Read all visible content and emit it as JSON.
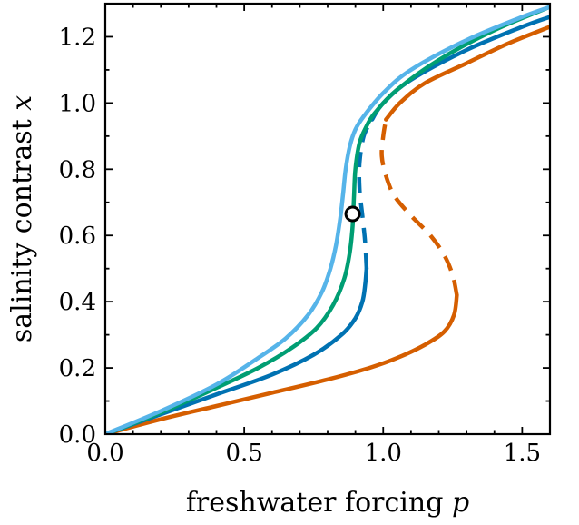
{
  "chart_data": {
    "type": "line",
    "xlabel": "freshwater forcing ",
    "xlabel_var": "p",
    "ylabel": "salinity contrast ",
    "ylabel_var": "x",
    "xlim": [
      0.0,
      1.6
    ],
    "ylim": [
      0.0,
      1.3
    ],
    "xticks": [
      "0.0",
      "0.5",
      "1.0",
      "1.5"
    ],
    "yticks": [
      "0.0",
      "0.2",
      "0.4",
      "0.6",
      "0.8",
      "1.0",
      "1.2"
    ],
    "grid": false,
    "legend": "none",
    "series": [
      {
        "color": "#56b4e9",
        "stable": [
          [
            0,
            0
          ],
          [
            0.2,
            0.07
          ],
          [
            0.4,
            0.15
          ],
          [
            0.55,
            0.23
          ],
          [
            0.65,
            0.29
          ],
          [
            0.73,
            0.36
          ],
          [
            0.78,
            0.43
          ],
          [
            0.81,
            0.5
          ],
          [
            0.83,
            0.57
          ],
          [
            0.845,
            0.65
          ],
          [
            0.855,
            0.72
          ],
          [
            0.865,
            0.8
          ],
          [
            0.88,
            0.87
          ],
          [
            0.9,
            0.92
          ],
          [
            0.93,
            0.96
          ],
          [
            1.0,
            1.03
          ],
          [
            1.1,
            1.1
          ],
          [
            1.3,
            1.19
          ],
          [
            1.5,
            1.26
          ],
          [
            1.6,
            1.29
          ]
        ],
        "unstable": []
      },
      {
        "color": "#009e73",
        "stable": [
          [
            0,
            0
          ],
          [
            0.2,
            0.065
          ],
          [
            0.4,
            0.14
          ],
          [
            0.55,
            0.2
          ],
          [
            0.67,
            0.26
          ],
          [
            0.76,
            0.32
          ],
          [
            0.82,
            0.39
          ],
          [
            0.86,
            0.47
          ],
          [
            0.88,
            0.55
          ],
          [
            0.89,
            0.63
          ],
          [
            0.895,
            0.72
          ],
          [
            0.9,
            0.8
          ],
          [
            0.915,
            0.88
          ],
          [
            0.94,
            0.93
          ],
          [
            0.97,
            0.97
          ],
          [
            1.05,
            1.04
          ],
          [
            1.2,
            1.13
          ],
          [
            1.4,
            1.22
          ],
          [
            1.6,
            1.29
          ]
        ],
        "unstable": []
      },
      {
        "color": "#0072b2",
        "stable_lower": [
          [
            0,
            0
          ],
          [
            0.2,
            0.06
          ],
          [
            0.4,
            0.12
          ],
          [
            0.6,
            0.18
          ],
          [
            0.75,
            0.24
          ],
          [
            0.85,
            0.3
          ],
          [
            0.9,
            0.35
          ],
          [
            0.925,
            0.4
          ],
          [
            0.935,
            0.45
          ],
          [
            0.94,
            0.5
          ]
        ],
        "unstable": [
          [
            0.94,
            0.5
          ],
          [
            0.935,
            0.58
          ],
          [
            0.925,
            0.66
          ],
          [
            0.915,
            0.74
          ],
          [
            0.915,
            0.82
          ],
          [
            0.93,
            0.9
          ],
          [
            0.96,
            0.95
          ]
        ],
        "stable_upper": [
          [
            0.96,
            0.95
          ],
          [
            1.0,
            1.0
          ],
          [
            1.1,
            1.07
          ],
          [
            1.3,
            1.16
          ],
          [
            1.5,
            1.23
          ],
          [
            1.6,
            1.26
          ]
        ]
      },
      {
        "color": "#d55e00",
        "stable_lower": [
          [
            0,
            0
          ],
          [
            0.2,
            0.045
          ],
          [
            0.4,
            0.085
          ],
          [
            0.6,
            0.125
          ],
          [
            0.8,
            0.165
          ],
          [
            0.95,
            0.2
          ],
          [
            1.05,
            0.23
          ],
          [
            1.15,
            0.27
          ],
          [
            1.22,
            0.31
          ],
          [
            1.255,
            0.36
          ],
          [
            1.265,
            0.42
          ]
        ],
        "unstable": [
          [
            1.265,
            0.42
          ],
          [
            1.25,
            0.48
          ],
          [
            1.22,
            0.54
          ],
          [
            1.17,
            0.6
          ],
          [
            1.1,
            0.66
          ],
          [
            1.04,
            0.72
          ],
          [
            1.01,
            0.78
          ],
          [
            0.995,
            0.84
          ],
          [
            1.0,
            0.9
          ],
          [
            1.01,
            0.95
          ]
        ],
        "stable_upper": [
          [
            1.01,
            0.95
          ],
          [
            1.06,
            1.0
          ],
          [
            1.15,
            1.06
          ],
          [
            1.3,
            1.12
          ],
          [
            1.45,
            1.18
          ],
          [
            1.6,
            1.23
          ]
        ]
      }
    ],
    "marker": {
      "x": 0.89,
      "y": 0.665,
      "fill": "#ffffff",
      "stroke": "#000000"
    }
  }
}
